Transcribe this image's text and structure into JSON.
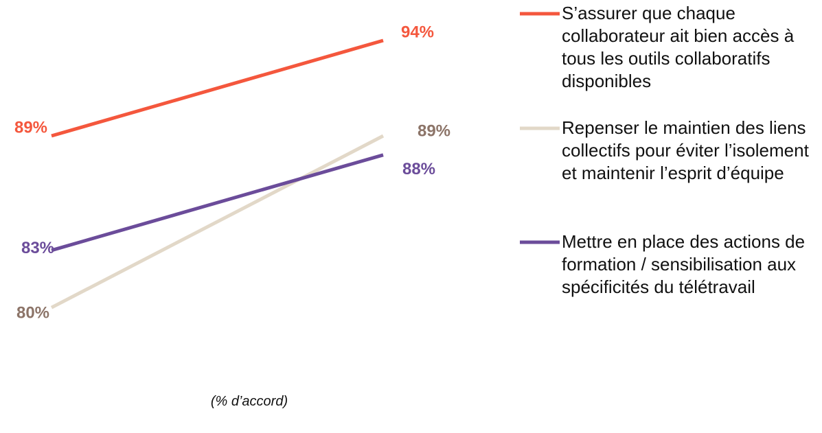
{
  "chart_data": {
    "type": "line",
    "categories": [
      null,
      null
    ],
    "ylim": [
      78,
      96
    ],
    "series": [
      {
        "name": "S’assurer que chaque collaborateur ait bien accès à tous les outils collaboratifs disponibles",
        "color": "#f4573d",
        "label_color": "#f4573d",
        "values": [
          89,
          94
        ],
        "value_labels": [
          "89%",
          "94%"
        ]
      },
      {
        "name": "Repenser le maintien des liens collectifs pour éviter l’isolement  et maintenir l’esprit d’équipe",
        "color": "#e2d8c8",
        "label_color": "#8c7468",
        "values": [
          80,
          89
        ],
        "value_labels": [
          "80%",
          "89%"
        ]
      },
      {
        "name": "Mettre en place des actions de formation / sensibilisation aux spécificités du télétravail",
        "color": "#6b4c9a",
        "label_color": "#6b4c9a",
        "values": [
          83,
          88
        ],
        "value_labels": [
          "83%",
          "88%"
        ]
      }
    ],
    "x_label": "(% d’accord)"
  }
}
